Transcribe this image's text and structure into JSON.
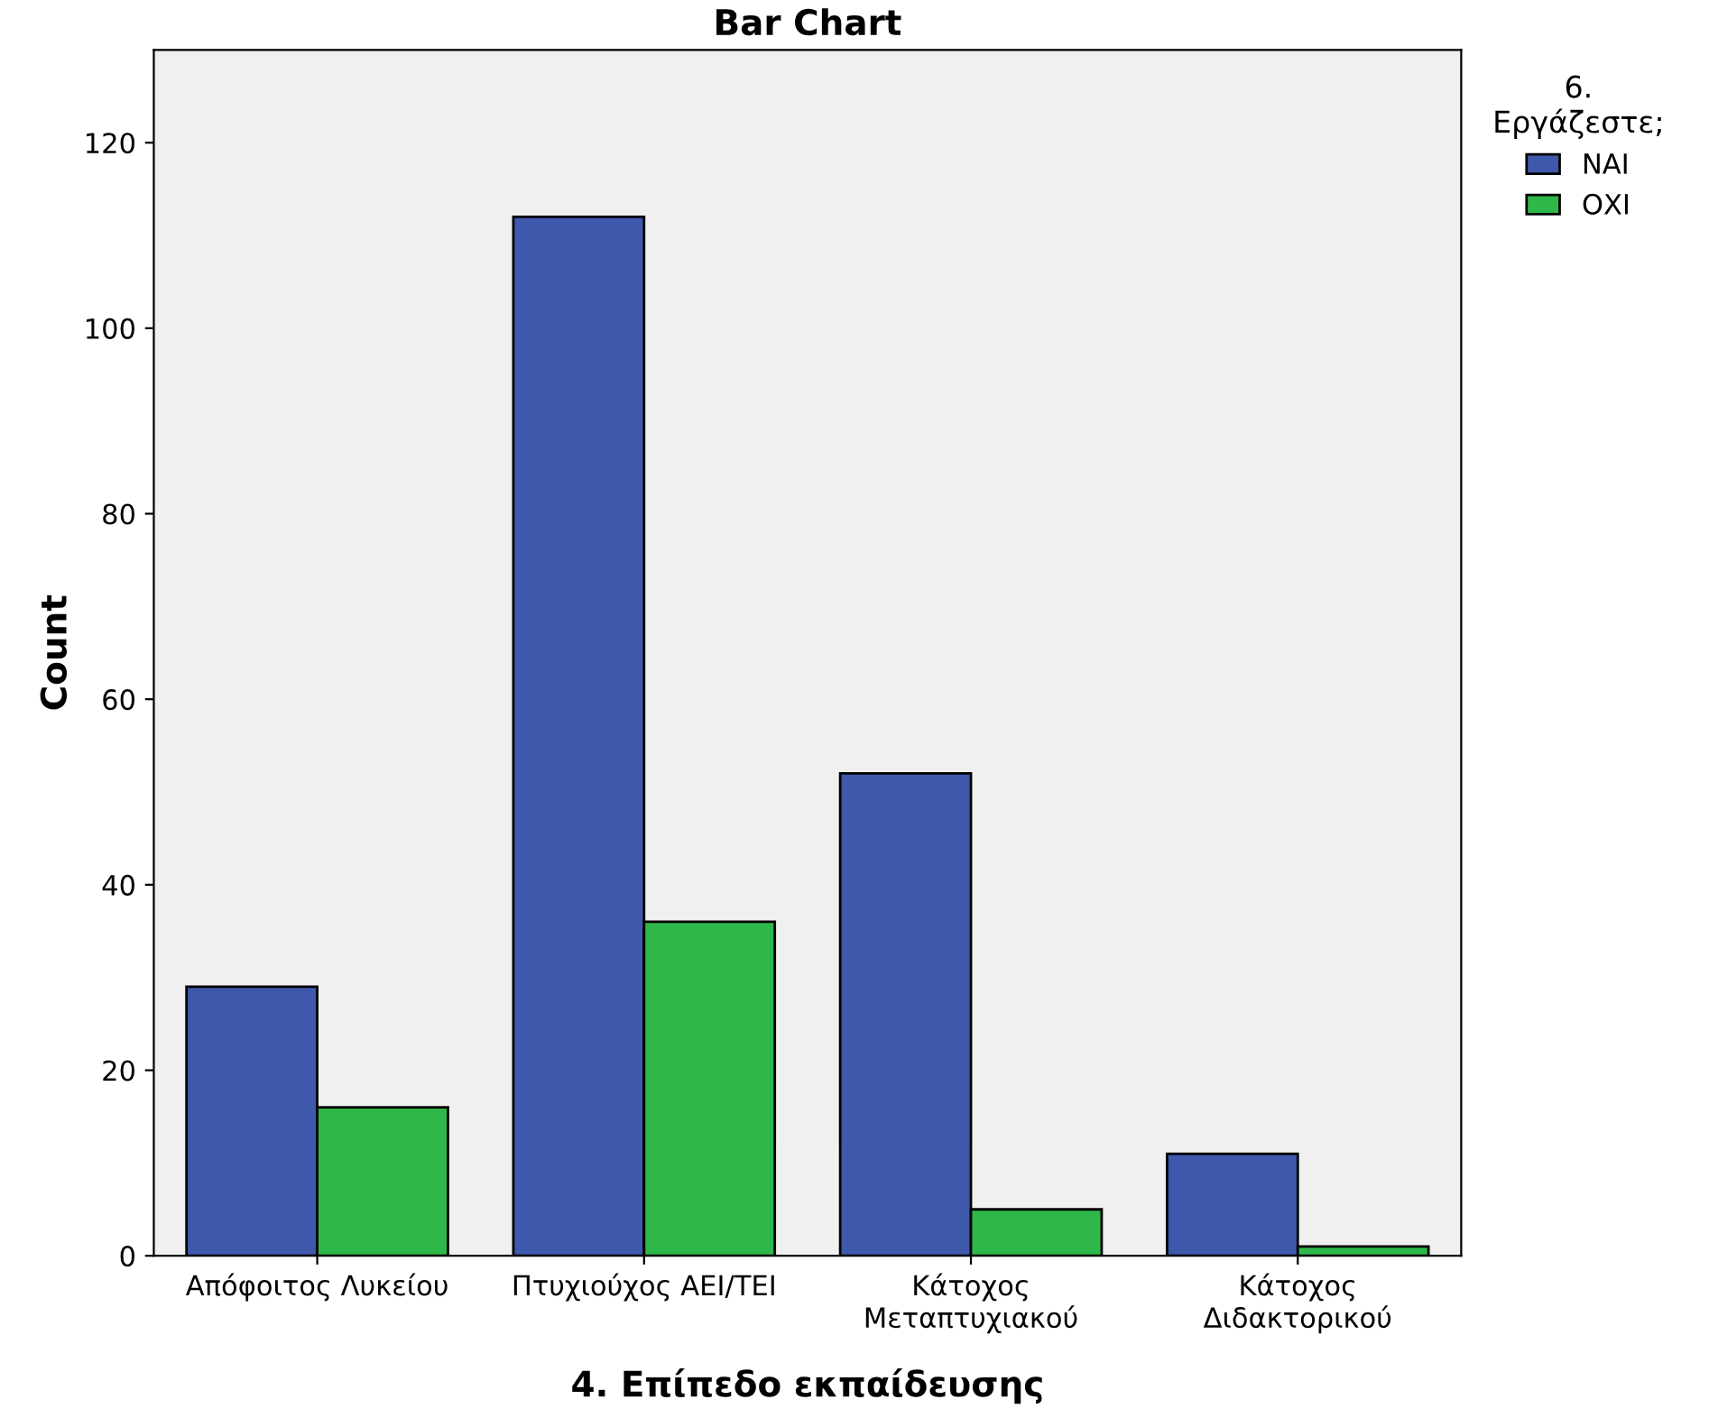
{
  "chart_data": {
    "type": "bar",
    "title": "Bar Chart",
    "xlabel": "4. Επίπεδο εκπαίδευσης",
    "ylabel": "Count",
    "legend_title": "6.\nΕργάζεστε;",
    "categories": [
      "Απόφοιτος Λυκείου",
      "Πτυχιούχος ΑΕΙ/ΤΕΙ",
      "Κάτοχος\nΜεταπτυχιακού",
      "Κάτοχος\nΔιδακτορικού"
    ],
    "series": [
      {
        "name": "ΝΑΙ",
        "color": "#3e58ac",
        "values": [
          29,
          112,
          52,
          11
        ]
      },
      {
        "name": "ΟΧΙ",
        "color": "#2fb84a",
        "values": [
          16,
          36,
          5,
          1
        ]
      }
    ],
    "ylim": [
      0,
      130
    ],
    "yticks": [
      0,
      20,
      40,
      60,
      80,
      100,
      120
    ],
    "legend": "top right"
  }
}
